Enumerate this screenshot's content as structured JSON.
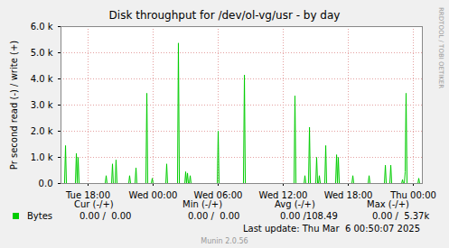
{
  "chart_data": {
    "type": "line",
    "title": "Disk throughput for /dev/ol-vg/usr - by day",
    "y_label": "Pr second read (-) / write (+)",
    "x": [
      15.5,
      15.83,
      15.92,
      16.0,
      16.83,
      16.92,
      17.0,
      17.08,
      17.17,
      19.58,
      19.67,
      19.75,
      20.17,
      20.25,
      20.33,
      20.5,
      20.58,
      20.67,
      21.75,
      21.83,
      21.92,
      22.33,
      22.42,
      22.5,
      23.33,
      23.42,
      23.5,
      23.83,
      23.92,
      24.0,
      25.17,
      25.25,
      25.33,
      26.25,
      26.33,
      26.42,
      26.92,
      27.0,
      27.08,
      27.17,
      27.25,
      27.33,
      27.42,
      27.5,
      29.92,
      30.0,
      30.08,
      32.33,
      32.42,
      32.5,
      37.0,
      37.08,
      37.17,
      37.92,
      38.0,
      38.08,
      38.33,
      38.42,
      38.5,
      39.0,
      39.08,
      39.17,
      39.25,
      39.33,
      39.42,
      39.83,
      39.92,
      40.0,
      40.83,
      40.92,
      41.0,
      41.08,
      41.17,
      42.33,
      42.42,
      42.5,
      43.83,
      43.92,
      44.0,
      45.33,
      45.42,
      45.5,
      45.83,
      45.92,
      46.0,
      46.92,
      47.0,
      47.08,
      47.17,
      47.25,
      47.33,
      47.42,
      48.42,
      48.5,
      48.58,
      48.83
    ],
    "series": [
      {
        "name": "Bytes",
        "color": "#00cc00",
        "values": [
          0,
          0,
          1450,
          0,
          0,
          1150,
          0,
          1000,
          0,
          0,
          300,
          0,
          0,
          750,
          0,
          0,
          900,
          0,
          0,
          300,
          0,
          0,
          600,
          0,
          0,
          3450,
          0,
          0,
          200,
          0,
          0,
          750,
          0,
          0,
          5370,
          0,
          0,
          450,
          0,
          400,
          0,
          0,
          300,
          0,
          0,
          2000,
          0,
          0,
          4150,
          0,
          0,
          3350,
          0,
          0,
          300,
          0,
          0,
          2150,
          0,
          0,
          1000,
          0,
          0,
          300,
          0,
          0,
          1450,
          0,
          0,
          1100,
          0,
          1000,
          0,
          0,
          300,
          0,
          0,
          300,
          0,
          0,
          700,
          0,
          0,
          700,
          0,
          0,
          150,
          0,
          0,
          450,
          3450,
          0,
          0,
          200,
          0,
          0
        ]
      }
    ],
    "xlim": [
      15.5,
      48.83
    ],
    "xticks": [
      {
        "value": 18,
        "label": "Tue 18:00"
      },
      {
        "value": 24,
        "label": "Wed 00:00"
      },
      {
        "value": 30,
        "label": "Wed 06:00"
      },
      {
        "value": 36,
        "label": "Wed 12:00"
      },
      {
        "value": 42,
        "label": "Wed 18:00"
      },
      {
        "value": 48,
        "label": "Thu 00:00"
      }
    ],
    "ylim": [
      0,
      6000
    ],
    "yticks": [
      {
        "value": 0,
        "label": "0.0"
      },
      {
        "value": 1000,
        "label": "1.0 k"
      },
      {
        "value": 2000,
        "label": "2.0 k"
      },
      {
        "value": 3000,
        "label": "3.0 k"
      },
      {
        "value": 4000,
        "label": "4.0 k"
      },
      {
        "value": 5000,
        "label": "5.0 k"
      },
      {
        "value": 6000,
        "label": "6.0 k"
      }
    ],
    "grid": true,
    "legend": "bottom",
    "legend_table": {
      "headers": [
        "Cur (-/+)",
        "Min (-/+)",
        "Avg (-/+)",
        "Max (-/+)"
      ],
      "rows": [
        {
          "name": "Bytes",
          "cells": [
            "0.00 /  0.00",
            "0.00 /  0.00",
            "0.00 /108.49",
            "0.00 /  5.37k"
          ]
        }
      ]
    },
    "footer": "Last update: Thu Mar  6 00:50:07 2025",
    "watermark": "RRDTOOL / TOBI OETIKER",
    "credit": "Munin 2.0.56"
  }
}
